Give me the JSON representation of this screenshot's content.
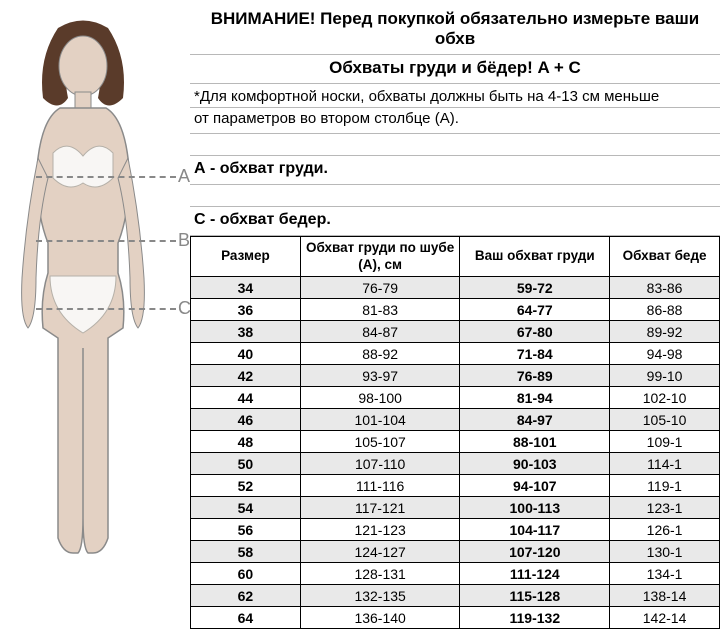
{
  "headline": "ВНИМАНИЕ! Перед покупкой обязательно измерьте ваши обхв",
  "subhead": "Обхваты груди и бёдер! A + C",
  "note_line1": "*Для комфортной носки, обхваты должны быть на 4-13 см меньше",
  "note_line2": "от параметров во втором столбце (А).",
  "section_a": "А - обхват груди.",
  "section_c": "С - обхват бедер.",
  "markers": {
    "a": "A",
    "b": "B",
    "c": "C"
  },
  "figure": {
    "skin": "#e3d1c3",
    "garment": "#f8f6f4",
    "hair": "#5a3b2a",
    "outline": "#8a8a8a",
    "marker_line_color": "#888888"
  },
  "table": {
    "headers": {
      "size": "Размер",
      "coat_bust": "Обхват груди по шубе (А), см",
      "your_bust": "Ваш обхват груди",
      "hip": "Обхват беде"
    },
    "rows": [
      {
        "size": "34",
        "a": "76-79",
        "bust": "59-72",
        "hip": "83-86",
        "shade": true
      },
      {
        "size": "36",
        "a": "81-83",
        "bust": "64-77",
        "hip": "86-88",
        "shade": false
      },
      {
        "size": "38",
        "a": "84-87",
        "bust": "67-80",
        "hip": "89-92",
        "shade": true
      },
      {
        "size": "40",
        "a": "88-92",
        "bust": "71-84",
        "hip": "94-98",
        "shade": false
      },
      {
        "size": "42",
        "a": "93-97",
        "bust": "76-89",
        "hip": "99-10",
        "shade": true
      },
      {
        "size": "44",
        "a": "98-100",
        "bust": "81-94",
        "hip": "102-10",
        "shade": false
      },
      {
        "size": "46",
        "a": "101-104",
        "bust": "84-97",
        "hip": "105-10",
        "shade": true
      },
      {
        "size": "48",
        "a": "105-107",
        "bust": "88-101",
        "hip": "109-1",
        "shade": false
      },
      {
        "size": "50",
        "a": "107-110",
        "bust": "90-103",
        "hip": "114-1",
        "shade": true
      },
      {
        "size": "52",
        "a": "111-116",
        "bust": "94-107",
        "hip": "119-1",
        "shade": false
      },
      {
        "size": "54",
        "a": "117-121",
        "bust": "100-113",
        "hip": "123-1",
        "shade": true
      },
      {
        "size": "56",
        "a": "121-123",
        "bust": "104-117",
        "hip": "126-1",
        "shade": false
      },
      {
        "size": "58",
        "a": "124-127",
        "bust": "107-120",
        "hip": "130-1",
        "shade": true
      },
      {
        "size": "60",
        "a": "128-131",
        "bust": "111-124",
        "hip": "134-1",
        "shade": false
      },
      {
        "size": "62",
        "a": "132-135",
        "bust": "115-128",
        "hip": "138-14",
        "shade": true
      },
      {
        "size": "64",
        "a": "136-140",
        "bust": "119-132",
        "hip": "142-14",
        "shade": false
      }
    ]
  }
}
